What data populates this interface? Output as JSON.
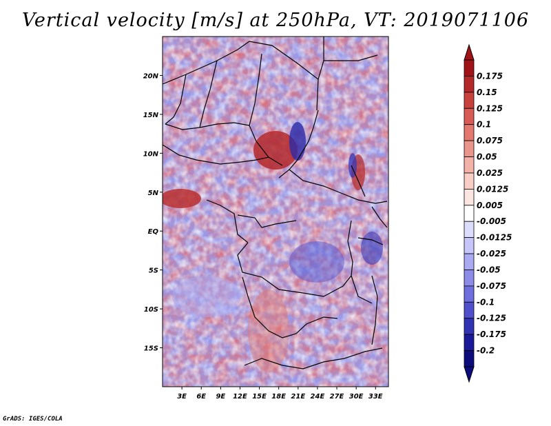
{
  "title": "Vertical velocity [m/s] at 250hPa, VT: 2019071106",
  "credit": "GrADS: IGES/COLA",
  "map": {
    "lat_ticks": [
      "20N",
      "15N",
      "10N",
      "5N",
      "EQ",
      "5S",
      "10S",
      "15S"
    ],
    "lat_values": [
      20,
      15,
      10,
      5,
      0,
      -5,
      -10,
      -15
    ],
    "lon_ticks": [
      "3E",
      "6E",
      "9E",
      "12E",
      "15E",
      "18E",
      "21E",
      "24E",
      "27E",
      "30E",
      "33E"
    ],
    "lon_values": [
      3,
      6,
      9,
      12,
      15,
      18,
      21,
      24,
      27,
      30,
      33
    ],
    "lat_range": [
      -20,
      25
    ],
    "lon_range": [
      0,
      35
    ]
  },
  "colorbar": {
    "labels": [
      "0.175",
      "0.15",
      "0.125",
      "0.1",
      "0.075",
      "0.05",
      "0.025",
      "0.0125",
      "0.005",
      "-0.005",
      "-0.0125",
      "-0.025",
      "-0.05",
      "-0.075",
      "-0.1",
      "-0.125",
      "-0.175",
      "-0.2"
    ],
    "colors": [
      "#a01418",
      "#b4282a",
      "#c8413c",
      "#d85c55",
      "#e2786e",
      "#ea958a",
      "#f2b2a8",
      "#f8cec6",
      "#fce6e2",
      "#ffffff",
      "#dcdcfc",
      "#c6c6fa",
      "#aaaaf2",
      "#8c8ce8",
      "#6e6edc",
      "#5050cc",
      "#3232b4",
      "#1a1a98",
      "#0c0c7c"
    ],
    "top_color": "#a01418",
    "bottom_color": "#0c0c7c"
  }
}
